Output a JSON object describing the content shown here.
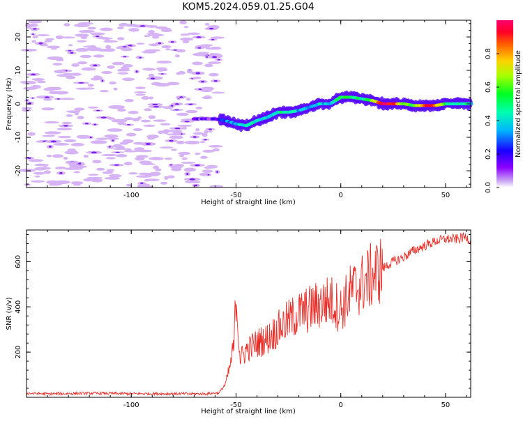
{
  "figure": {
    "title": "KOM5.2024.059.01.25.G04"
  },
  "chart_data": [
    {
      "type": "heatmap",
      "xlabel": "Height of straight line (km)",
      "ylabel": "Frequency (Hz)",
      "xlim": [
        -150,
        62
      ],
      "ylim": [
        -25,
        25
      ],
      "xticks": [
        -100,
        -50,
        0,
        50
      ],
      "xtick_labels": [
        "-100",
        "-50",
        "0",
        "50"
      ],
      "yticks": [
        -20,
        -10,
        0,
        10,
        20
      ],
      "ytick_labels": [
        "-20",
        "-10",
        "0",
        "10",
        "20"
      ],
      "noise_region_x": [
        -150,
        -58
      ],
      "trace": {
        "x": [
          -70,
          -60,
          -55,
          -50,
          -45,
          -40,
          -35,
          -30,
          -25,
          -20,
          -15,
          -10,
          -5,
          0,
          5,
          10,
          15,
          20,
          25,
          30,
          35,
          40,
          45,
          50,
          55,
          62
        ],
        "freq": [
          -4.5,
          -4.5,
          -5,
          -6,
          -6.5,
          -5,
          -4,
          -2.5,
          -2.5,
          -2,
          -1,
          0,
          0,
          2,
          2,
          1.5,
          1,
          0,
          0,
          0,
          -0.5,
          -0.5,
          -0.5,
          0,
          0,
          0
        ],
        "amplitude": [
          0.1,
          0.15,
          0.3,
          0.35,
          0.4,
          0.45,
          0.4,
          0.45,
          0.45,
          0.35,
          0.3,
          0.4,
          0.35,
          0.55,
          0.5,
          0.45,
          0.65,
          0.95,
          0.92,
          0.6,
          0.55,
          0.9,
          0.85,
          0.5,
          0.45,
          0.4
        ]
      },
      "colorbar": {
        "label": "Normalized spectral amplitude",
        "range": [
          0,
          1
        ],
        "ticks": [
          0.0,
          0.2,
          0.4,
          0.6,
          0.8
        ],
        "tick_labels": [
          "0.0",
          "0.2",
          "0.4",
          "0.6",
          "0.8"
        ],
        "colormap": "gist_rainbow_r"
      }
    },
    {
      "type": "line",
      "xlabel": "Height of straight line (km)",
      "ylabel": "SNR (v/v)",
      "xlim": [
        -150,
        62
      ],
      "ylim": [
        0,
        740
      ],
      "xticks": [
        -100,
        -50,
        0,
        50
      ],
      "xtick_labels": [
        "-100",
        "-50",
        "0",
        "50"
      ],
      "yticks": [
        200,
        400,
        600
      ],
      "ytick_labels": [
        "200",
        "400",
        "600"
      ],
      "line_color": "#e8302a",
      "x": [
        -150,
        -140,
        -120,
        -100,
        -80,
        -65,
        -58,
        -55,
        -53,
        -51,
        -50,
        -48,
        -45,
        -40,
        -35,
        -30,
        -25,
        -20,
        -15,
        -10,
        -5,
        0,
        5,
        10,
        15,
        20,
        25,
        30,
        35,
        40,
        45,
        50,
        55,
        60,
        62
      ],
      "y": [
        18,
        15,
        18,
        16,
        16,
        15,
        20,
        60,
        130,
        230,
        460,
        170,
        210,
        240,
        260,
        300,
        340,
        370,
        390,
        410,
        430,
        390,
        470,
        500,
        540,
        570,
        600,
        620,
        650,
        670,
        690,
        700,
        700,
        710,
        690
      ]
    }
  ]
}
